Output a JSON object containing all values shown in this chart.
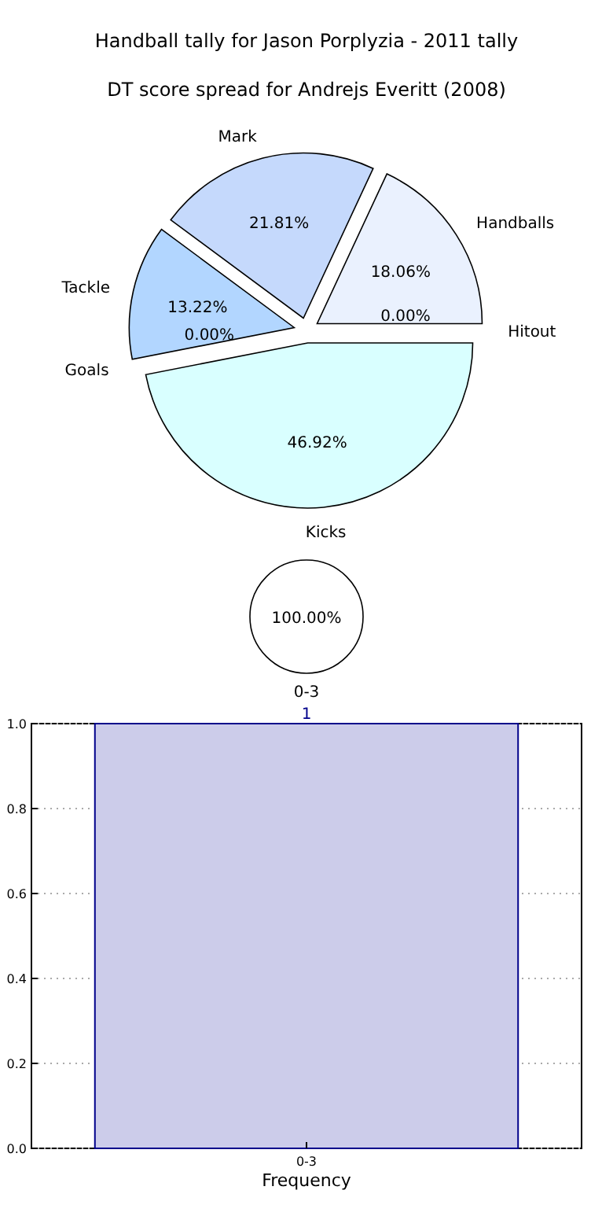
{
  "chart_data": [
    {
      "type": "bar",
      "title": "Handball tally for Jason Porplyzia - 2011 tally",
      "xlabel": "Frequency",
      "categories": [
        "0-3"
      ],
      "values": [
        1
      ],
      "color": "#ccccea",
      "ylim": [
        0,
        1
      ],
      "yticks": [
        {
          "value": 0,
          "label": "0.0"
        },
        {
          "value": 0.2,
          "label": "0.2"
        },
        {
          "value": 0.4,
          "label": "0.4"
        },
        {
          "value": 0.6,
          "label": "0.6"
        },
        {
          "value": 0.8,
          "label": "0.8"
        },
        {
          "value": 1,
          "label": "1.0"
        }
      ],
      "grid": "y",
      "data_labels": true
    },
    {
      "type": "pie",
      "categories": [
        "0-3"
      ],
      "values": [
        100
      ],
      "colors": [
        "#ffffff"
      ],
      "value_labels": [
        "100.00%"
      ]
    },
    {
      "type": "pie",
      "title": "DT score spread for Andrejs Everitt (2008)",
      "categories": [
        "Mark",
        "Handballs",
        "Hitout",
        "Kicks",
        "Goals",
        "Tackle"
      ],
      "values": [
        21.81,
        18.06,
        0,
        46.92,
        0,
        13.22
      ],
      "colors": [
        "#c5d9fc",
        "#eaf1fe",
        null,
        "#d9ffff",
        null,
        "#b2d6ff"
      ],
      "value_labels": [
        "21.81%",
        "18.06%",
        "0.00%",
        "46.92%",
        "0.00%",
        "13.22%"
      ]
    }
  ]
}
